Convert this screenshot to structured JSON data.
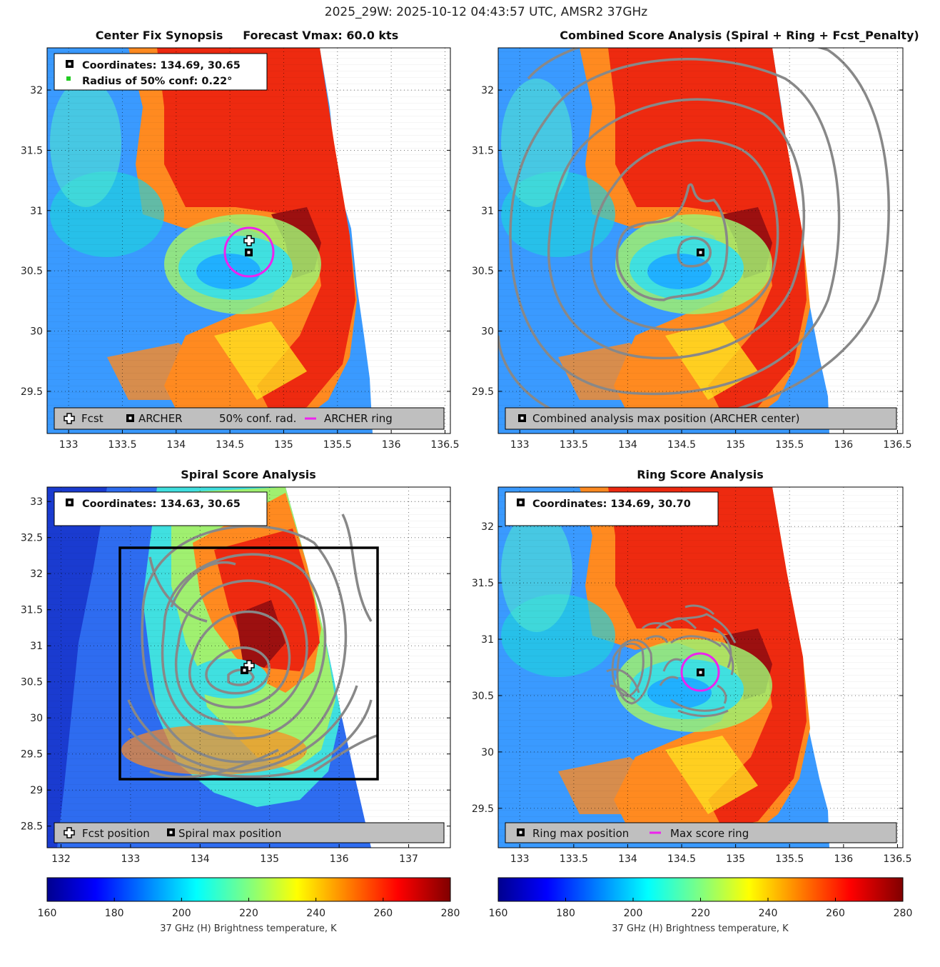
{
  "page_title": "2025_29W: 2025-10-12 04:43:57 UTC, AMSR2 37GHz",
  "colors": {
    "archer_ring": "#ee22ee",
    "contour": "#888888",
    "conf_dot": "#22cc22",
    "legend_bg": "#bfbfbf"
  },
  "panels": [
    {
      "id": "center-fix",
      "title": "Center Fix Synopsis     Forecast Vmax: 60.0 kts",
      "info": [
        "Coordinates: 134.69, 30.65",
        "Radius of 50% conf: 0.22°"
      ],
      "legend": [
        "Fcst",
        "ARCHER",
        "50% conf. rad.",
        "ARCHER ring"
      ],
      "xticks": [
        "133",
        "133.5",
        "134",
        "134.5",
        "135",
        "135.5",
        "136",
        "136.5"
      ],
      "yticks": [
        "29.5",
        "30",
        "30.5",
        "31",
        "31.5",
        "32"
      ]
    },
    {
      "id": "combined",
      "title": "Combined Score Analysis (Spiral + Ring + Fcst_Penalty)",
      "legend": [
        "Combined analysis max position (ARCHER center)"
      ],
      "xticks": [
        "133",
        "133.5",
        "134",
        "134.5",
        "135",
        "135.5",
        "136",
        "136.5"
      ],
      "yticks": [
        "29.5",
        "30",
        "30.5",
        "31",
        "31.5",
        "32"
      ]
    },
    {
      "id": "spiral",
      "title": "Spiral Score Analysis",
      "info": [
        "Coordinates: 134.63, 30.65"
      ],
      "legend": [
        "Fcst position",
        "Spiral max position"
      ],
      "xticks": [
        "132",
        "133",
        "134",
        "135",
        "136",
        "137"
      ],
      "yticks": [
        "28.5",
        "29",
        "29.5",
        "30",
        "30.5",
        "31",
        "31.5",
        "32",
        "32.5",
        "33"
      ]
    },
    {
      "id": "ring",
      "title": "Ring Score Analysis",
      "info": [
        "Coordinates: 134.69, 30.70"
      ],
      "legend": [
        "Ring max position",
        "Max score ring"
      ],
      "xticks": [
        "133",
        "133.5",
        "134",
        "134.5",
        "135",
        "135.5",
        "136",
        "136.5"
      ],
      "yticks": [
        "29.5",
        "30",
        "30.5",
        "31",
        "31.5",
        "32"
      ]
    }
  ],
  "colorbar": {
    "label": "37 GHz (H) Brightness temperature, K",
    "ticks": [
      "160",
      "180",
      "200",
      "220",
      "240",
      "260",
      "280"
    ]
  },
  "chart_data": [
    {
      "type": "heatmap",
      "title": "Center Fix Synopsis     Forecast Vmax: 60.0 kts",
      "xlim": [
        132.8,
        136.55
      ],
      "ylim": [
        29.15,
        32.35
      ],
      "colorscale": "jet",
      "clim": [
        160,
        280
      ],
      "points": {
        "archer_center": [
          134.69,
          30.65
        ],
        "forecast": [
          134.71,
          30.76
        ]
      },
      "conf_radius_deg": 0.22,
      "ring_radius_deg": 0.22,
      "legend_location": "bottom"
    },
    {
      "type": "heatmap",
      "title": "Combined Score Analysis (Spiral + Ring + Fcst_Penalty)",
      "xlim": [
        132.8,
        136.55
      ],
      "ylim": [
        29.15,
        32.35
      ],
      "colorscale": "jet",
      "clim": [
        160,
        280
      ],
      "points": {
        "max_position": [
          134.69,
          30.65
        ]
      },
      "contours": "gray concentric score contours",
      "legend_location": "bottom"
    },
    {
      "type": "heatmap",
      "title": "Spiral Score Analysis",
      "xlim": [
        131.8,
        137.6
      ],
      "ylim": [
        28.2,
        33.2
      ],
      "colorscale": "jet",
      "clim": [
        160,
        280
      ],
      "points": {
        "spiral_max": [
          134.63,
          30.65
        ],
        "forecast": [
          134.71,
          30.76
        ]
      },
      "search_box": {
        "x": [
          132.85,
          136.55
        ],
        "y": [
          29.15,
          32.35
        ]
      },
      "legend_location": "bottom"
    },
    {
      "type": "heatmap",
      "title": "Ring Score Analysis",
      "xlim": [
        132.8,
        136.55
      ],
      "ylim": [
        29.15,
        32.35
      ],
      "colorscale": "jet",
      "clim": [
        160,
        280
      ],
      "points": {
        "ring_max": [
          134.69,
          30.7
        ]
      },
      "ring_radius_deg": 0.17,
      "legend_location": "bottom"
    }
  ]
}
